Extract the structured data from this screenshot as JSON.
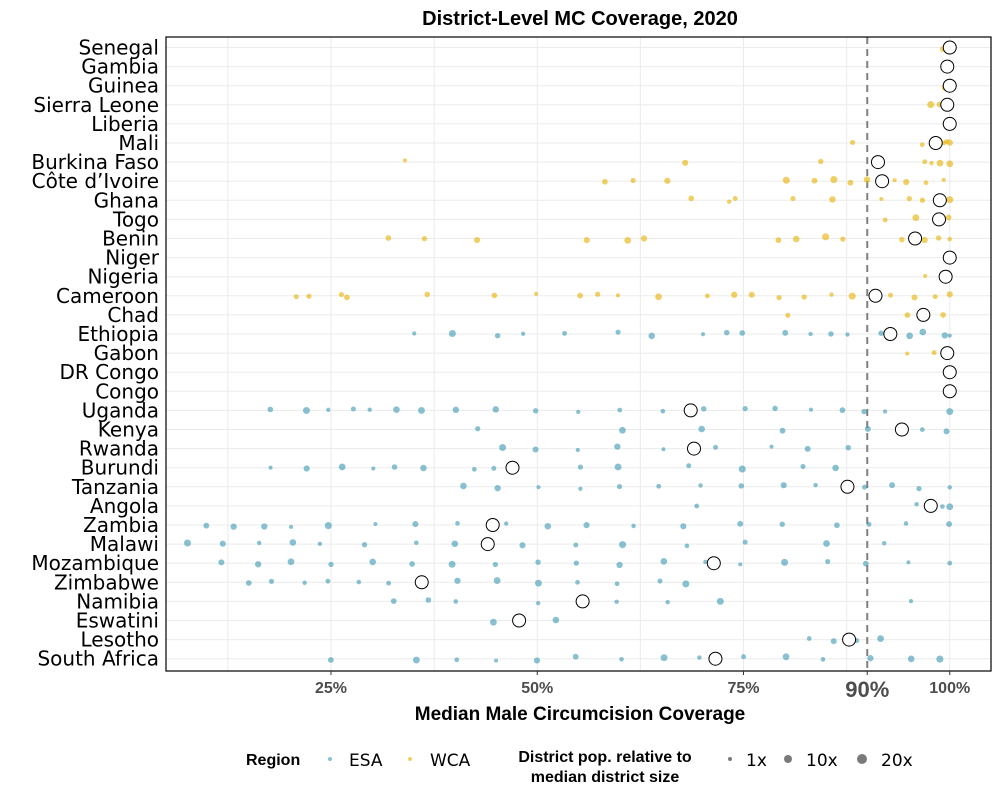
{
  "chart_data": {
    "type": "scatter",
    "title": "District-Level MC Coverage, 2020",
    "xlabel": "Median Male Circumcision Coverage",
    "xlim": [
      0.05,
      1.05
    ],
    "x_ticks": [
      {
        "value": 0.25,
        "label": "25%"
      },
      {
        "value": 0.5,
        "label": "50%"
      },
      {
        "value": 0.75,
        "label": "75%"
      },
      {
        "value": 0.9,
        "label": "90%",
        "emphasis": true
      },
      {
        "value": 1.0,
        "label": "100%"
      }
    ],
    "reference_line": {
      "value": 0.9,
      "style": "dashed",
      "color": "#808080"
    },
    "colors": {
      "ESA": "#3b98b1",
      "WCA": "#e6b000"
    },
    "countries": [
      {
        "name": "Senegal",
        "region": "WCA",
        "median": 1.0,
        "districts": [
          1.0,
          1.0,
          0.995,
          1.0
        ]
      },
      {
        "name": "Gambia",
        "region": "WCA",
        "median": 0.997,
        "districts": [
          0.997,
          1.0
        ]
      },
      {
        "name": "Guinea",
        "region": "WCA",
        "median": 1.0,
        "districts": [
          1.0,
          0.998
        ]
      },
      {
        "name": "Sierra Leone",
        "region": "WCA",
        "median": 0.997,
        "districts": [
          0.98,
          0.99,
          1.0
        ]
      },
      {
        "name": "Liberia",
        "region": "WCA",
        "median": 1.0,
        "districts": [
          0.99,
          1.0
        ]
      },
      {
        "name": "Mali",
        "region": "WCA",
        "median": 0.983,
        "districts": [
          0.88,
          0.97,
          0.99,
          1.0,
          0.995
        ]
      },
      {
        "name": "Burkina Faso",
        "region": "WCA",
        "median": 0.913,
        "districts": [
          0.34,
          0.68,
          0.84,
          0.91,
          0.97,
          0.98,
          0.99,
          1.0
        ]
      },
      {
        "name": "Côte d’Ivoire",
        "region": "WCA",
        "median": 0.918,
        "districts": [
          0.58,
          0.62,
          0.66,
          0.8,
          0.84,
          0.86,
          0.88,
          0.9,
          0.93,
          0.95,
          0.97,
          0.99
        ]
      },
      {
        "name": "Ghana",
        "region": "WCA",
        "median": 0.988,
        "districts": [
          0.69,
          0.73,
          0.74,
          0.81,
          0.86,
          0.92,
          0.95,
          0.97,
          0.99,
          1.0
        ]
      },
      {
        "name": "Togo",
        "region": "WCA",
        "median": 0.987,
        "districts": [
          0.92,
          0.96,
          0.99,
          1.0
        ]
      },
      {
        "name": "Benin",
        "region": "WCA",
        "median": 0.958,
        "districts": [
          0.32,
          0.36,
          0.43,
          0.56,
          0.61,
          0.63,
          0.79,
          0.81,
          0.85,
          0.87,
          0.94,
          0.97,
          0.99,
          1.0
        ]
      },
      {
        "name": "Niger",
        "region": "WCA",
        "median": 1.0,
        "districts": [
          1.0
        ]
      },
      {
        "name": "Nigeria",
        "region": "WCA",
        "median": 0.995,
        "districts": [
          0.97,
          0.99,
          1.0
        ]
      },
      {
        "name": "Cameroon",
        "region": "WCA",
        "median": 0.91,
        "districts": [
          0.21,
          0.22,
          0.26,
          0.27,
          0.37,
          0.45,
          0.5,
          0.55,
          0.57,
          0.6,
          0.65,
          0.71,
          0.74,
          0.76,
          0.79,
          0.82,
          0.86,
          0.88,
          0.93,
          0.96,
          0.98,
          1.0
        ]
      },
      {
        "name": "Chad",
        "region": "WCA",
        "median": 0.968,
        "districts": [
          0.8,
          0.95,
          0.97,
          0.99
        ]
      },
      {
        "name": "Ethiopia",
        "region": "ESA",
        "median": 0.928,
        "districts": [
          0.35,
          0.4,
          0.45,
          0.48,
          0.53,
          0.6,
          0.64,
          0.7,
          0.73,
          0.75,
          0.8,
          0.83,
          0.86,
          0.88,
          0.92,
          0.95,
          0.97,
          0.99,
          1.0
        ]
      },
      {
        "name": "Gabon",
        "region": "WCA",
        "median": 0.997,
        "districts": [
          0.95,
          0.98,
          1.0
        ]
      },
      {
        "name": "DR Congo",
        "region": "ESA",
        "median": 1.0,
        "districts": [
          1.0
        ]
      },
      {
        "name": "Congo",
        "region": "WCA",
        "median": 1.0,
        "districts": [
          1.0
        ]
      },
      {
        "name": "Uganda",
        "region": "ESA",
        "median": 0.686,
        "districts": [
          0.18,
          0.22,
          0.25,
          0.28,
          0.3,
          0.33,
          0.36,
          0.4,
          0.45,
          0.5,
          0.55,
          0.6,
          0.65,
          0.7,
          0.75,
          0.79,
          0.83,
          0.87,
          0.9,
          0.92,
          1.0
        ]
      },
      {
        "name": "Kenya",
        "region": "ESA",
        "median": 0.942,
        "districts": [
          0.43,
          0.6,
          0.7,
          0.8,
          0.9,
          0.95,
          0.97,
          1.0
        ]
      },
      {
        "name": "Rwanda",
        "region": "ESA",
        "median": 0.69,
        "districts": [
          0.46,
          0.5,
          0.55,
          0.6,
          0.65,
          0.72,
          0.78,
          0.83,
          0.88
        ]
      },
      {
        "name": "Burundi",
        "region": "ESA",
        "median": 0.47,
        "districts": [
          0.18,
          0.22,
          0.26,
          0.3,
          0.33,
          0.36,
          0.42,
          0.45,
          0.55,
          0.6,
          0.68,
          0.75,
          0.82,
          0.86
        ]
      },
      {
        "name": "Tanzania",
        "region": "ESA",
        "median": 0.876,
        "districts": [
          0.41,
          0.45,
          0.5,
          0.55,
          0.6,
          0.65,
          0.7,
          0.75,
          0.8,
          0.84,
          0.9,
          0.93,
          0.96,
          1.0
        ]
      },
      {
        "name": "Angola",
        "region": "ESA",
        "median": 0.977,
        "districts": [
          0.69,
          0.96,
          0.99,
          1.0
        ]
      },
      {
        "name": "Zambia",
        "region": "ESA",
        "median": 0.446,
        "districts": [
          0.1,
          0.13,
          0.17,
          0.2,
          0.25,
          0.3,
          0.35,
          0.4,
          0.46,
          0.51,
          0.56,
          0.62,
          0.68,
          0.75,
          0.8,
          0.86,
          0.9,
          0.95,
          1.0
        ]
      },
      {
        "name": "Malawi",
        "region": "ESA",
        "median": 0.44,
        "districts": [
          0.08,
          0.12,
          0.16,
          0.2,
          0.24,
          0.29,
          0.35,
          0.4,
          0.48,
          0.55,
          0.6,
          0.68,
          0.75,
          0.85,
          0.92
        ]
      },
      {
        "name": "Mozambique",
        "region": "ESA",
        "median": 0.714,
        "districts": [
          0.12,
          0.16,
          0.2,
          0.25,
          0.3,
          0.35,
          0.4,
          0.45,
          0.5,
          0.55,
          0.6,
          0.65,
          0.7,
          0.75,
          0.8,
          0.85,
          0.9,
          0.95,
          1.0
        ]
      },
      {
        "name": "Zimbabwe",
        "region": "ESA",
        "median": 0.36,
        "districts": [
          0.15,
          0.18,
          0.22,
          0.25,
          0.28,
          0.32,
          0.36,
          0.4,
          0.45,
          0.5,
          0.55,
          0.6,
          0.65,
          0.68
        ]
      },
      {
        "name": "Namibia",
        "region": "ESA",
        "median": 0.555,
        "districts": [
          0.33,
          0.37,
          0.4,
          0.5,
          0.55,
          0.6,
          0.66,
          0.72,
          0.95
        ]
      },
      {
        "name": "Eswatini",
        "region": "ESA",
        "median": 0.478,
        "districts": [
          0.45,
          0.52
        ]
      },
      {
        "name": "Lesotho",
        "region": "ESA",
        "median": 0.878,
        "districts": [
          0.83,
          0.86,
          0.89,
          0.92
        ]
      },
      {
        "name": "South Africa",
        "region": "ESA",
        "median": 0.716,
        "districts": [
          0.25,
          0.35,
          0.4,
          0.45,
          0.5,
          0.55,
          0.6,
          0.65,
          0.7,
          0.75,
          0.8,
          0.85,
          0.9,
          0.95,
          0.99
        ]
      }
    ],
    "legend": {
      "placement": "bottom",
      "region": {
        "title": "Region",
        "items": [
          {
            "label": "ESA",
            "color": "#3b98b1"
          },
          {
            "label": "WCA",
            "color": "#e6b000"
          }
        ]
      },
      "size": {
        "title_line1": "District pop. relative to",
        "title_line2": "median district size",
        "items": [
          {
            "label": "1x",
            "value": 1
          },
          {
            "label": "10x",
            "value": 10
          },
          {
            "label": "20x",
            "value": 20
          }
        ]
      }
    }
  }
}
